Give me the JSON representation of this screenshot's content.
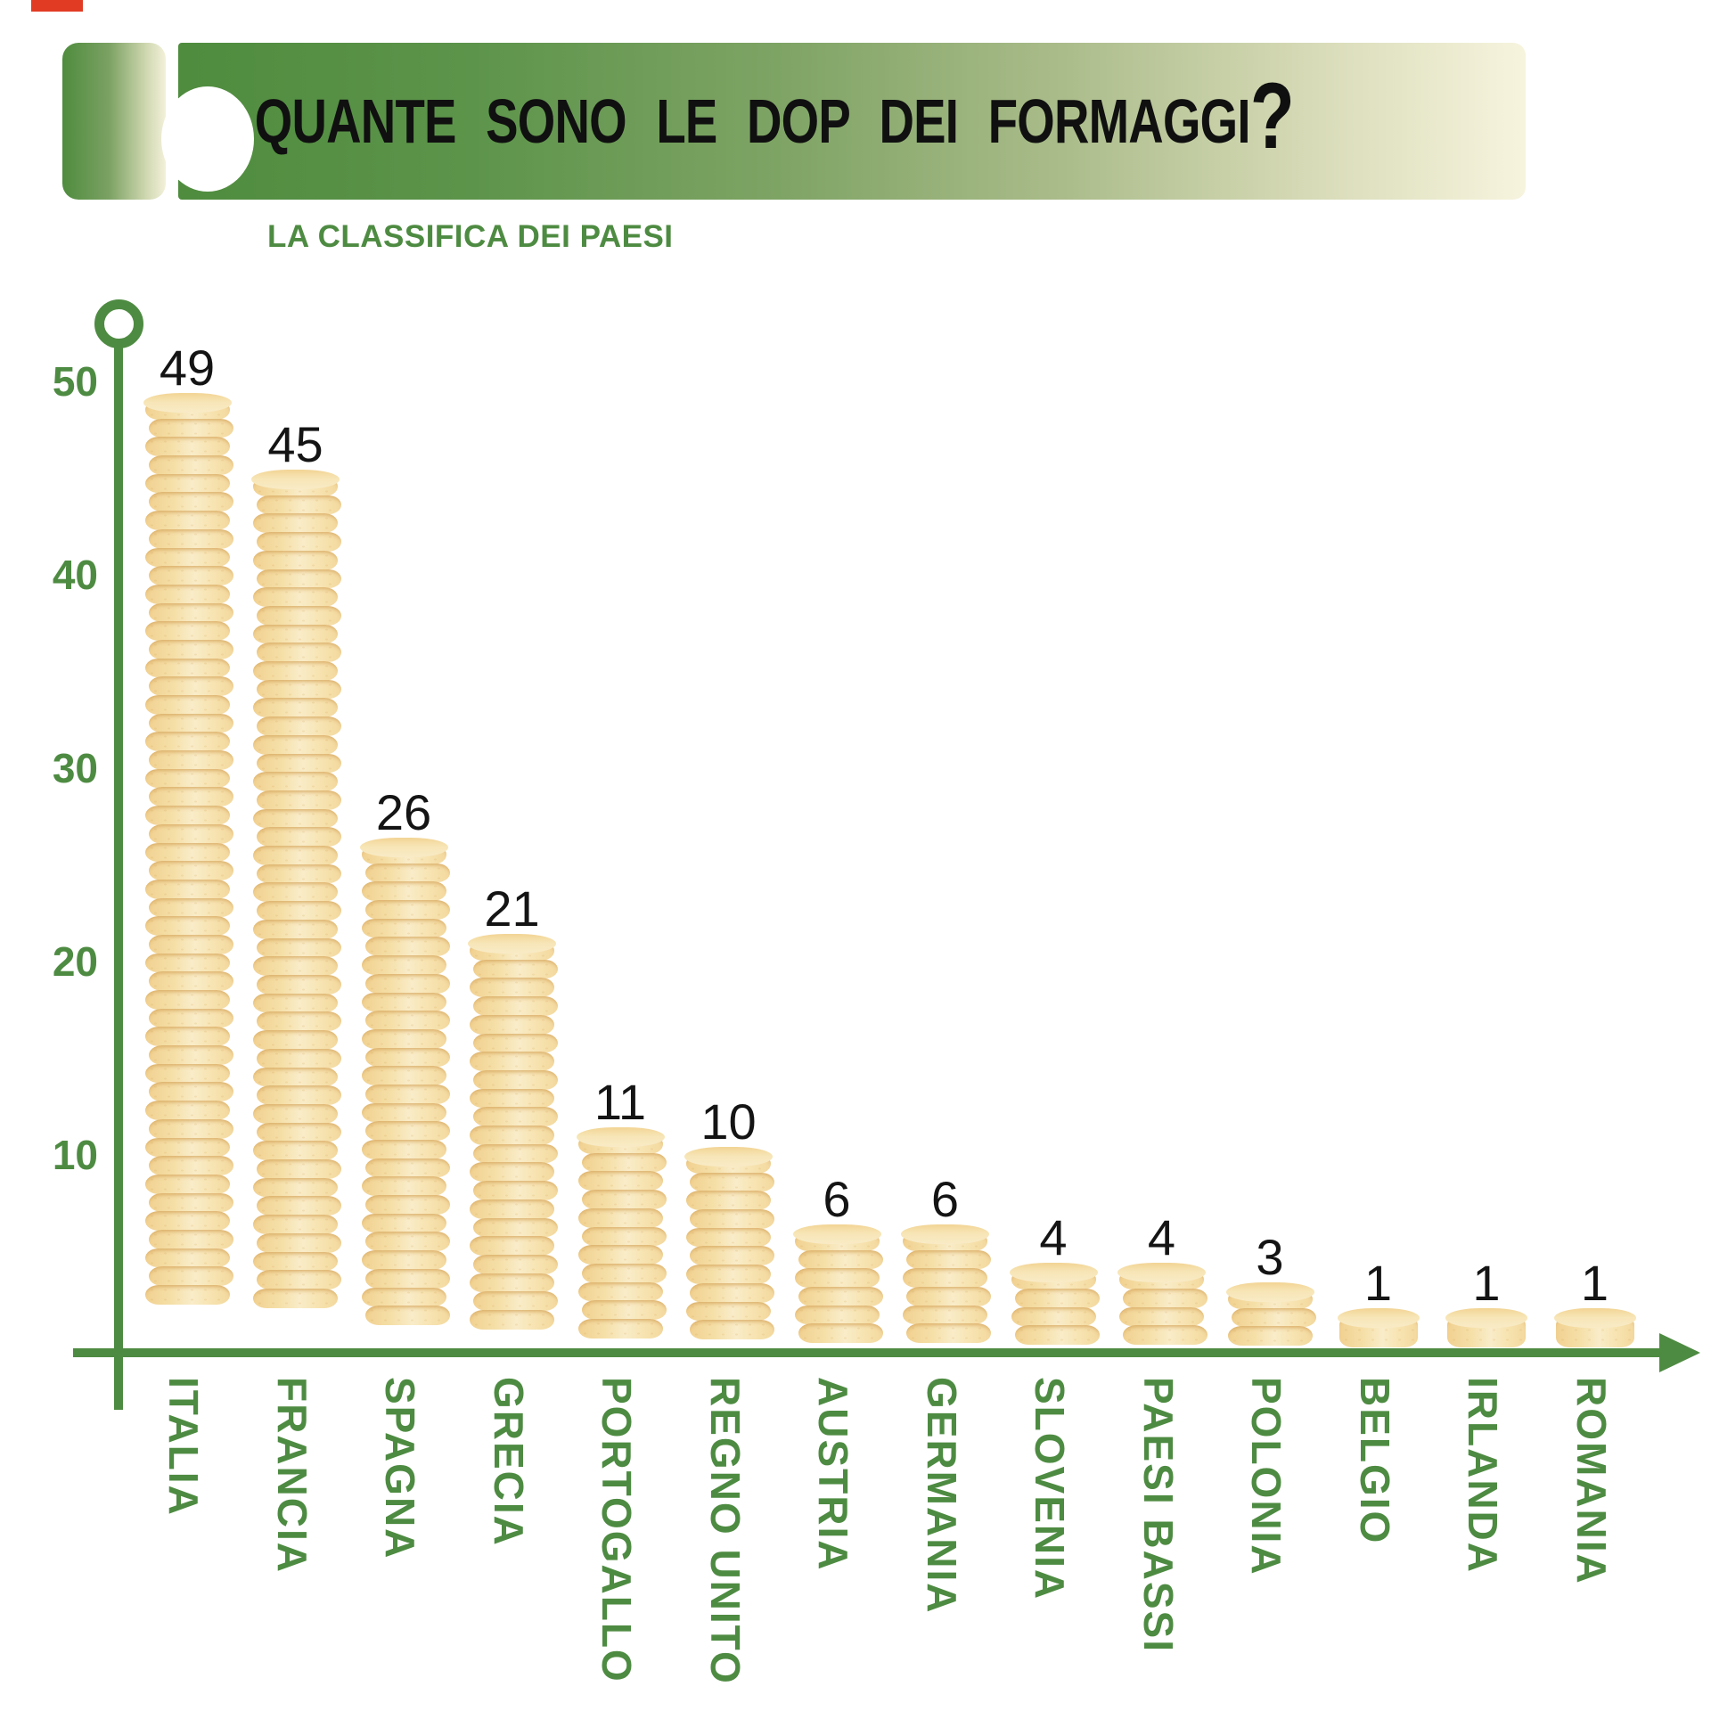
{
  "corner_mark": {
    "visible": true
  },
  "header": {
    "title": "QUANTE SONO LE DOP DEI FORMAGGI",
    "question_mark": "?",
    "subtitle": "LA CLASSIFICA DEI PAESI"
  },
  "chart_data": {
    "type": "bar",
    "title": "QUANTE SONO LE DOP DEI FORMAGGI?",
    "subtitle": "LA CLASSIFICA DEI PAESI",
    "categories": [
      "ITALIA",
      "FRANCIA",
      "SPAGNA",
      "GRECIA",
      "PORTOGALLO",
      "REGNO UNITO",
      "AUSTRIA",
      "GERMANIA",
      "SLOVENIA",
      "PAESI BASSI",
      "POLONIA",
      "BELGIO",
      "IRLANDA",
      "ROMANIA"
    ],
    "values": [
      49,
      45,
      26,
      21,
      11,
      10,
      6,
      6,
      4,
      4,
      3,
      1,
      1,
      1
    ],
    "xlabel": "",
    "ylabel": "",
    "yticks": [
      50,
      40,
      30,
      20,
      10
    ],
    "ylim": [
      0,
      52
    ],
    "grid": false,
    "legend": "none",
    "bar_motif": "stacked cheese wheels"
  },
  "colors": {
    "axis_green": "#4e8b42",
    "label_green": "#4e8b42",
    "value_text": "#141414",
    "cheese_body": "#f6e0aa",
    "cheese_light": "#faeecb",
    "cheese_rim": "#f0d190",
    "banner_green": "#4f8c3e",
    "banner_cream": "#f7f4de",
    "corner_red": "#e23b24"
  }
}
